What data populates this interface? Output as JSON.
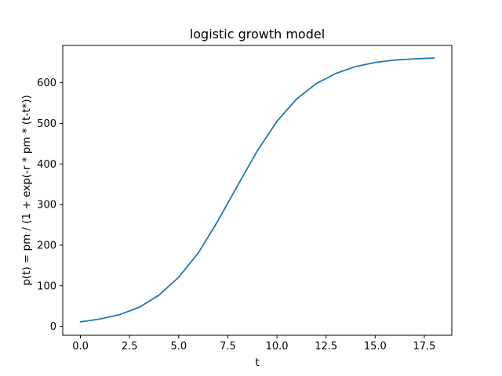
{
  "chart_data": {
    "type": "line",
    "title": "logistic growth model",
    "xlabel": "t",
    "ylabel": "p(t) = pm / (1 + exp(-r * pm * (t-t*))",
    "xlim": [
      -0.9,
      18.9
    ],
    "ylim": [
      -22,
      692
    ],
    "xticks": [
      0.0,
      2.5,
      5.0,
      7.5,
      10.0,
      12.5,
      15.0,
      17.5
    ],
    "xtick_labels": [
      "0.0",
      "2.5",
      "5.0",
      "7.5",
      "10.0",
      "12.5",
      "15.0",
      "17.5"
    ],
    "yticks": [
      0,
      100,
      200,
      300,
      400,
      500,
      600
    ],
    "ytick_labels": [
      "0",
      "100",
      "200",
      "300",
      "400",
      "500",
      "600"
    ],
    "grid": false,
    "series": [
      {
        "color": "#1f77b4",
        "x": [
          0,
          1,
          2,
          3,
          4,
          5,
          6,
          7,
          8,
          9,
          10,
          11,
          12,
          13,
          14,
          15,
          16,
          17,
          18
        ],
        "y": [
          11,
          18,
          29,
          47,
          77,
          121,
          181,
          260,
          347,
          432,
          505,
          560,
          598,
          623,
          640,
          650,
          656,
          659,
          661
        ]
      }
    ]
  }
}
